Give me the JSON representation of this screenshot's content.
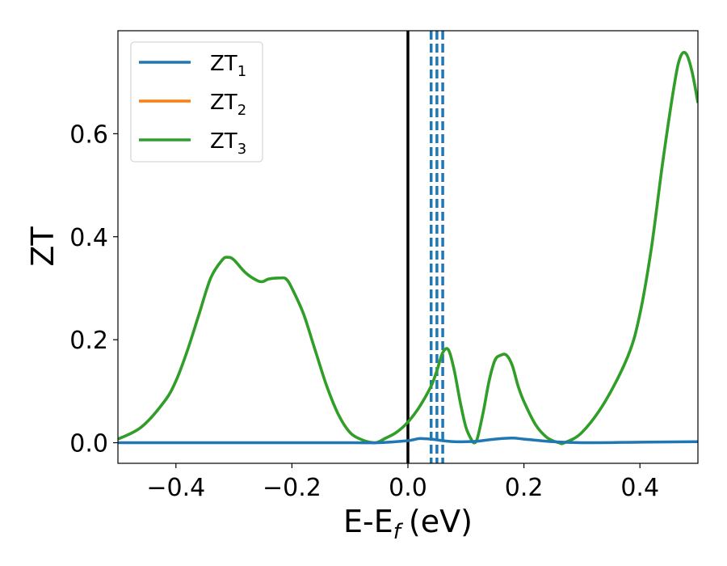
{
  "chart_data": {
    "type": "line",
    "title": "",
    "xlabel": "E-E",
    "xlabel_sub": "f",
    "xlabel_unit": "(eV)",
    "ylabel": "ZT",
    "xlim": [
      -0.5,
      0.5
    ],
    "ylim": [
      -0.04,
      0.8
    ],
    "xticks": [
      -0.4,
      -0.2,
      0.0,
      0.2,
      0.4
    ],
    "xtick_labels": [
      "−0.4",
      "−0.2",
      "0.0",
      "0.2",
      "0.4"
    ],
    "yticks": [
      0.0,
      0.2,
      0.4,
      0.6
    ],
    "ytick_labels": [
      "0.0",
      "0.2",
      "0.4",
      "0.6"
    ],
    "grid": false,
    "legend_position": "top-left",
    "vertical_lines": [
      {
        "x": 0.0,
        "style": "solid",
        "color": "#000000"
      },
      {
        "x": 0.04,
        "style": "dashed",
        "color": "#1f77b4"
      },
      {
        "x": 0.05,
        "style": "dashed",
        "color": "#1f77b4"
      },
      {
        "x": 0.06,
        "style": "dashed",
        "color": "#1f77b4"
      }
    ],
    "series": [
      {
        "name": "ZT",
        "sub": "1",
        "color": "#1f77b4",
        "x": [
          -0.5,
          -0.3,
          -0.1,
          -0.05,
          0.0,
          0.02,
          0.04,
          0.06,
          0.08,
          0.1,
          0.12,
          0.15,
          0.18,
          0.2,
          0.25,
          0.3,
          0.4,
          0.5
        ],
        "y": [
          0.0,
          0.0,
          0.0,
          0.0,
          0.004,
          0.008,
          0.007,
          0.004,
          0.002,
          0.002,
          0.003,
          0.007,
          0.009,
          0.007,
          0.002,
          0.0,
          0.001,
          0.002
        ]
      },
      {
        "name": "ZT",
        "sub": "2",
        "color": "#ff7f0e",
        "x": [
          -0.5,
          -0.46,
          -0.42,
          -0.4,
          -0.38,
          -0.36,
          -0.34,
          -0.32,
          -0.31,
          -0.3,
          -0.28,
          -0.26,
          -0.25,
          -0.24,
          -0.22,
          -0.21,
          -0.2,
          -0.18,
          -0.16,
          -0.14,
          -0.12,
          -0.1,
          -0.08,
          -0.06,
          -0.05,
          -0.04,
          -0.02,
          0.0,
          0.02,
          0.04,
          0.05,
          0.06,
          0.07,
          0.08,
          0.09,
          0.1,
          0.11,
          0.115,
          0.12,
          0.13,
          0.14,
          0.15,
          0.16,
          0.17,
          0.18,
          0.19,
          0.2,
          0.22,
          0.24,
          0.26,
          0.27,
          0.3,
          0.34,
          0.38,
          0.4,
          0.42,
          0.44,
          0.46,
          0.47,
          0.48,
          0.49,
          0.5
        ],
        "y": [
          0.007,
          0.03,
          0.08,
          0.12,
          0.18,
          0.25,
          0.32,
          0.355,
          0.36,
          0.355,
          0.33,
          0.315,
          0.313,
          0.318,
          0.32,
          0.318,
          0.3,
          0.25,
          0.18,
          0.11,
          0.055,
          0.02,
          0.006,
          0.0,
          0.002,
          0.008,
          0.02,
          0.04,
          0.07,
          0.11,
          0.14,
          0.175,
          0.18,
          0.14,
          0.08,
          0.03,
          0.005,
          0.0,
          0.01,
          0.06,
          0.12,
          0.16,
          0.17,
          0.17,
          0.15,
          0.11,
          0.08,
          0.035,
          0.01,
          0.0,
          0.0,
          0.02,
          0.08,
          0.17,
          0.25,
          0.38,
          0.55,
          0.7,
          0.75,
          0.755,
          0.72,
          0.66
        ]
      },
      {
        "name": "ZT",
        "sub": "3",
        "color": "#2ca02c",
        "x": [
          -0.5,
          -0.46,
          -0.42,
          -0.4,
          -0.38,
          -0.36,
          -0.34,
          -0.32,
          -0.31,
          -0.3,
          -0.28,
          -0.26,
          -0.25,
          -0.24,
          -0.22,
          -0.21,
          -0.2,
          -0.18,
          -0.16,
          -0.14,
          -0.12,
          -0.1,
          -0.08,
          -0.06,
          -0.05,
          -0.04,
          -0.02,
          0.0,
          0.02,
          0.04,
          0.05,
          0.06,
          0.07,
          0.08,
          0.09,
          0.1,
          0.11,
          0.115,
          0.12,
          0.13,
          0.14,
          0.15,
          0.16,
          0.17,
          0.18,
          0.19,
          0.2,
          0.22,
          0.24,
          0.26,
          0.27,
          0.3,
          0.34,
          0.38,
          0.4,
          0.42,
          0.44,
          0.46,
          0.47,
          0.48,
          0.49,
          0.5
        ],
        "y": [
          0.007,
          0.03,
          0.08,
          0.12,
          0.18,
          0.25,
          0.32,
          0.355,
          0.36,
          0.355,
          0.33,
          0.315,
          0.313,
          0.318,
          0.32,
          0.318,
          0.3,
          0.25,
          0.18,
          0.11,
          0.055,
          0.02,
          0.006,
          0.0,
          0.002,
          0.008,
          0.02,
          0.04,
          0.07,
          0.11,
          0.14,
          0.175,
          0.18,
          0.14,
          0.08,
          0.03,
          0.005,
          0.0,
          0.01,
          0.06,
          0.12,
          0.16,
          0.17,
          0.17,
          0.15,
          0.11,
          0.08,
          0.035,
          0.01,
          0.0,
          0.0,
          0.02,
          0.08,
          0.17,
          0.25,
          0.38,
          0.55,
          0.7,
          0.75,
          0.755,
          0.72,
          0.66
        ]
      }
    ]
  }
}
